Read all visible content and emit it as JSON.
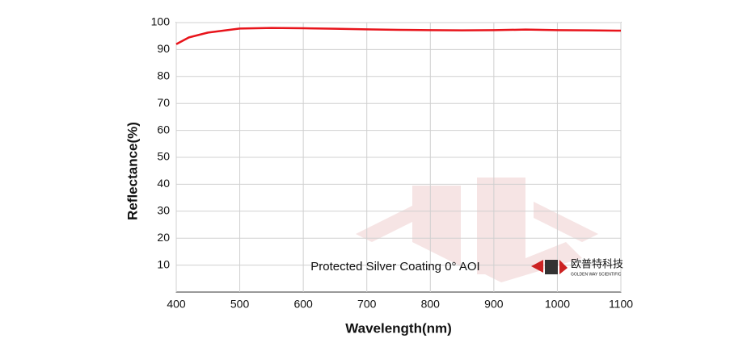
{
  "chart_data": {
    "type": "line",
    "x_label": "Wavelength(nm)",
    "y_label": "Reflectance(%)",
    "annotation": "Protected Silver Coating  0°  AOI",
    "logo_text": "欧普特科技",
    "logo_subtext": "GOLDEN WAY SCIENTIFIC",
    "series": [
      {
        "name": "Reflectance",
        "color": "#e8141b",
        "x": [
          400,
          420,
          450,
          500,
          550,
          600,
          650,
          700,
          750,
          800,
          850,
          900,
          950,
          1000,
          1050,
          1100
        ],
        "values": [
          92,
          94.5,
          96.3,
          97.8,
          98,
          97.9,
          97.7,
          97.5,
          97.3,
          97.2,
          97.1,
          97.2,
          97.4,
          97.2,
          97.1,
          97.0
        ]
      }
    ],
    "xlim": [
      400,
      1100
    ],
    "xticks": [
      400,
      500,
      600,
      700,
      800,
      900,
      1000,
      1100
    ],
    "ylim": [
      0,
      100
    ],
    "yticks": [
      10,
      20,
      30,
      40,
      50,
      60,
      70,
      80,
      90,
      100
    ],
    "grid": true
  }
}
